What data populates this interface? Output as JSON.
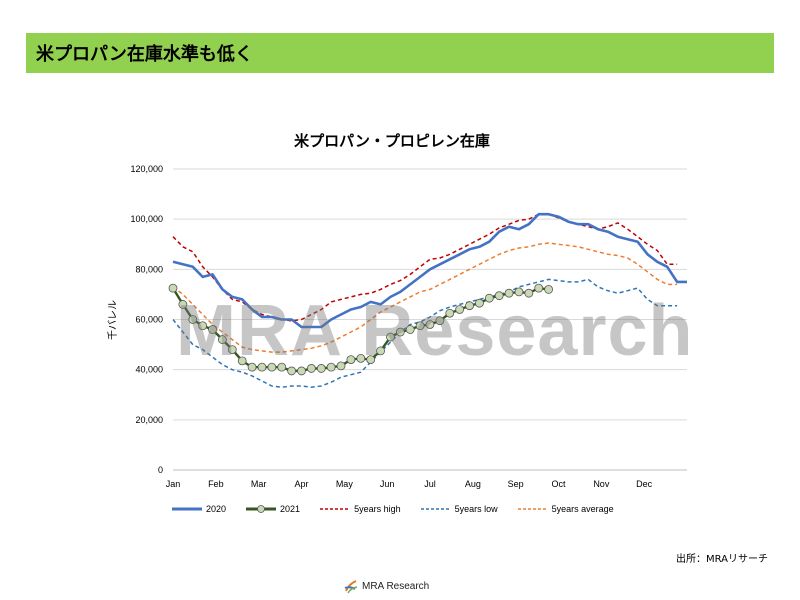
{
  "header": {
    "title": "米プロパン在庫水準も低く"
  },
  "watermark": "MRA Research",
  "source": "出所：MRAリサーチ",
  "footer": {
    "logo_text": "MRA Research"
  },
  "colors": {
    "header_bg": "#92d050",
    "s2020": "#4472c4",
    "s2021": "#375623",
    "s2021_marker": "#c9d9b4",
    "high": "#c00000",
    "low": "#2e75b6",
    "avg": "#ed7d31"
  },
  "chart_data": {
    "type": "line",
    "title": "米プロパン・プロピレン在庫",
    "ylabel": "千バレル",
    "ylim": [
      0,
      120000
    ],
    "yticks": [
      0,
      20000,
      40000,
      60000,
      80000,
      100000,
      120000
    ],
    "ytick_labels": [
      "0",
      "20,000",
      "40,000",
      "60,000",
      "80,000",
      "100,000",
      "120,000"
    ],
    "xaxis": {
      "months": [
        "Jan",
        "Feb",
        "Mar",
        "Apr",
        "May",
        "Jun",
        "Jul",
        "Aug",
        "Sep",
        "Oct",
        "Nov",
        "Dec"
      ],
      "weeks_per_year": 52
    },
    "series": [
      {
        "name": "2020",
        "style": "solid",
        "values": [
          83000,
          82000,
          81000,
          77000,
          78000,
          72000,
          69000,
          68000,
          64000,
          61000,
          61000,
          60000,
          60000,
          57000,
          57000,
          57000,
          60000,
          62000,
          64000,
          65000,
          67000,
          66000,
          69000,
          71000,
          74000,
          77000,
          80000,
          82000,
          84000,
          86000,
          88000,
          89000,
          91000,
          95000,
          97000,
          96000,
          98000,
          102000,
          102000,
          101000,
          99000,
          98000,
          98000,
          96000,
          95000,
          93000,
          92000,
          91000,
          86000,
          83000,
          81000,
          75000,
          75000
        ]
      },
      {
        "name": "2021",
        "style": "marker",
        "values": [
          72500,
          66000,
          60000,
          57500,
          56000,
          52000,
          48000,
          43500,
          41000,
          41000,
          41000,
          41000,
          39500,
          39500,
          40500,
          40500,
          41000,
          41500,
          44000,
          44500,
          44000,
          47500,
          53000,
          55000,
          56000,
          57500,
          58000,
          59500,
          62500,
          64000,
          65500,
          66500,
          68500,
          69500,
          70500,
          71000,
          70500,
          72500,
          72000
        ]
      },
      {
        "name": "5years high",
        "style": "dashed",
        "values": [
          93000,
          89000,
          87000,
          81000,
          77000,
          72000,
          68000,
          67000,
          64000,
          62000,
          61000,
          60000,
          59500,
          60000,
          62000,
          64000,
          67000,
          68000,
          69000,
          70000,
          70500,
          72000,
          74000,
          75500,
          78000,
          81000,
          84000,
          84500,
          86000,
          88000,
          90000,
          92000,
          94000,
          96500,
          98000,
          99500,
          100000,
          102000,
          102000,
          100500,
          99000,
          98000,
          97000,
          96000,
          97000,
          98500,
          96000,
          93000,
          90000,
          87500,
          82000,
          82000
        ]
      },
      {
        "name": "5years low",
        "style": "dashed",
        "values": [
          60000,
          55000,
          50000,
          48000,
          45000,
          42000,
          40000,
          39000,
          37500,
          35500,
          33500,
          33000,
          33500,
          33500,
          33000,
          33500,
          35000,
          37000,
          38000,
          39000,
          43000,
          47000,
          51000,
          55000,
          58000,
          59000,
          61000,
          63500,
          65000,
          66000,
          67000,
          68000,
          69000,
          70000,
          71000,
          73000,
          74000,
          75000,
          76000,
          75500,
          75000,
          75000,
          76000,
          73000,
          71500,
          70500,
          71500,
          72500,
          68000,
          65500,
          65500,
          65500
        ]
      },
      {
        "name": "5years average",
        "style": "dashed",
        "values": [
          73000,
          70000,
          66000,
          62000,
          58000,
          55000,
          52000,
          49000,
          48000,
          47500,
          47000,
          47000,
          47500,
          48000,
          48500,
          49500,
          51000,
          53000,
          55000,
          57000,
          60000,
          63000,
          65000,
          67000,
          69000,
          71000,
          72000,
          74000,
          76000,
          78000,
          80000,
          82000,
          84000,
          86000,
          87500,
          88500,
          89000,
          90000,
          90500,
          90000,
          89500,
          89000,
          88000,
          87000,
          86000,
          85500,
          84500,
          82000,
          79000,
          76000,
          74000,
          74000
        ]
      }
    ],
    "legend_position": "bottom",
    "grid": "horizontal"
  }
}
